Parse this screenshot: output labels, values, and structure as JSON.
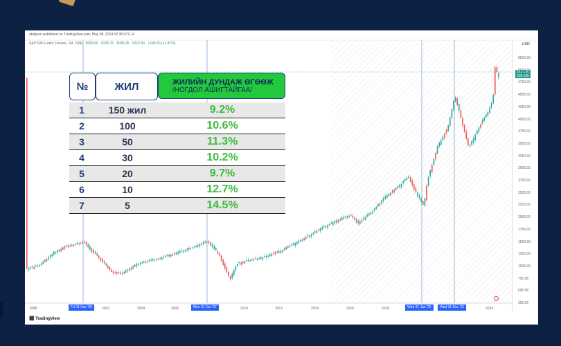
{
  "header": {
    "published_by": "abilguun published on TradingView.com, May 08, 2024 02:38 UTC-4",
    "symbol": "S&P 500 E-mini Futures, 1M, CME",
    "ohlc": [
      "5050.00",
      "5226.75",
      "5036.25",
      "5212.50",
      "+145.50 (+2.87%)"
    ],
    "currency": "USD"
  },
  "price_tag": {
    "price": "5217.50",
    "countdown": "238:19h"
  },
  "y_axis": [
    "5500.00",
    "5000.00",
    "4750.00",
    "4500.00",
    "4250.00",
    "4000.00",
    "3750.00",
    "3500.00",
    "3250.00",
    "3000.00",
    "2750.00",
    "2500.00",
    "2250.00",
    "2000.00",
    "1750.00",
    "1500.00",
    "1250.00",
    "1000.00",
    "750.00",
    "500.00",
    "250.00"
  ],
  "x_axis": [
    "1998",
    "2002",
    "2004",
    "2006",
    "2010",
    "2012",
    "2014",
    "2016",
    "2018",
    "2024"
  ],
  "x_badges": [
    "Fri 01 Sep '00",
    "Mon 01 Oct '07",
    "Wed 01 Jan '20",
    "Wed 01 Dec '21"
  ],
  "footer": {
    "logo": "TradingView"
  },
  "table": {
    "headers": {
      "num": "№",
      "year": "ЖИЛ",
      "avg_line1": "ЖИЛИЙН ДУНДАЖ ӨГӨӨЖ",
      "avg_line2": "/НОГДОЛ АШИГТАЙГАА/"
    },
    "rows": [
      {
        "num": "1",
        "years": "150 жил",
        "return": "9.2%"
      },
      {
        "num": "2",
        "years": "100",
        "return": "10.6%"
      },
      {
        "num": "3",
        "years": "50",
        "return": "11.3%"
      },
      {
        "num": "4",
        "years": "30",
        "return": "10.2%"
      },
      {
        "num": "5",
        "years": "20",
        "return": "9.7%"
      },
      {
        "num": "6",
        "years": "10",
        "return": "12.7%"
      },
      {
        "num": "7",
        "years": "5",
        "return": "14.5%"
      }
    ]
  },
  "colors": {
    "up": "#26a69a",
    "down": "#ef5350",
    "accent": "#2962ff",
    "green": "#22c93c",
    "navy": "#0d2145"
  }
}
